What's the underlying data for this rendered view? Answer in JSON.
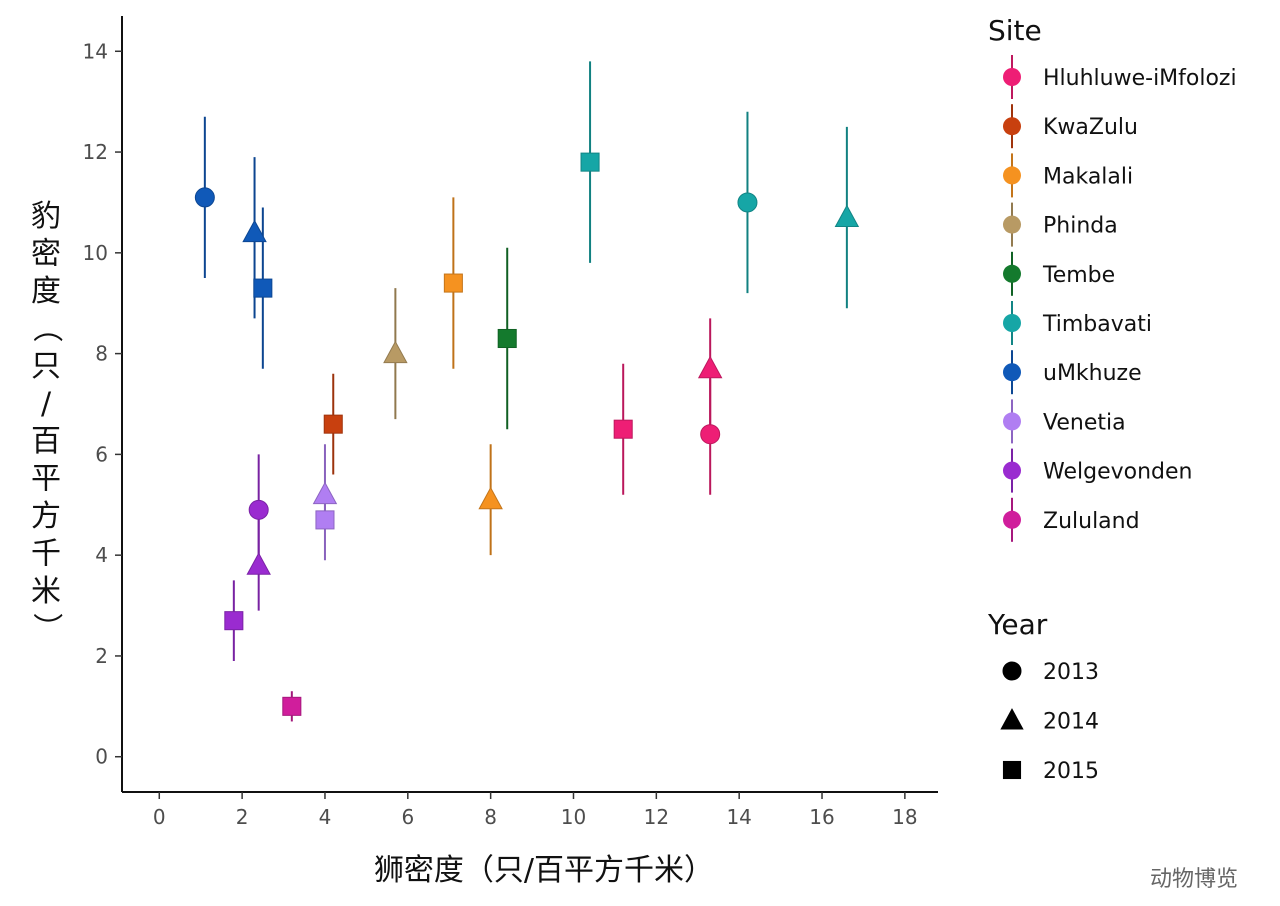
{
  "chart_data": {
    "type": "scatter",
    "xlabel": "狮密度（只/百平方千米）",
    "ylabel": "豹密度（只/百平方千米）",
    "xlim": [
      -0.9,
      18.8
    ],
    "ylim": [
      -0.7,
      14.7
    ],
    "x_ticks": [
      "0",
      "2",
      "4",
      "6",
      "8",
      "10",
      "12",
      "14",
      "16",
      "18"
    ],
    "y_ticks": [
      "0",
      "2",
      "4",
      "6",
      "8",
      "10",
      "12",
      "14"
    ],
    "grid": false,
    "legend_placement": "right",
    "site_legend_title": "Site",
    "year_legend_title": "Year",
    "sites": [
      {
        "name": "Hluhluwe-iMfolozi",
        "color": "#ee1e75"
      },
      {
        "name": "KwaZulu",
        "color": "#c8400f"
      },
      {
        "name": "Makalali",
        "color": "#f59220"
      },
      {
        "name": "Phinda",
        "color": "#b89a64"
      },
      {
        "name": "Tembe",
        "color": "#147a2d"
      },
      {
        "name": "Timbavati",
        "color": "#16a6a6"
      },
      {
        "name": "uMkhuze",
        "color": "#1059b8"
      },
      {
        "name": "Venetia",
        "color": "#b07ef2"
      },
      {
        "name": "Welgevonden",
        "color": "#9a2bd0"
      },
      {
        "name": "Zululand",
        "color": "#d01e9c"
      }
    ],
    "years": [
      {
        "name": "2013",
        "shape": "circle"
      },
      {
        "name": "2014",
        "shape": "triangle"
      },
      {
        "name": "2015",
        "shape": "square"
      }
    ],
    "points": [
      {
        "site": "uMkhuze",
        "year": "2013",
        "x": 1.1,
        "y": 11.1,
        "ylow": 9.5,
        "yhigh": 12.7
      },
      {
        "site": "uMkhuze",
        "year": "2014",
        "x": 2.3,
        "y": 10.4,
        "ylow": 8.7,
        "yhigh": 11.9
      },
      {
        "site": "uMkhuze",
        "year": "2015",
        "x": 2.5,
        "y": 9.3,
        "ylow": 7.7,
        "yhigh": 10.9
      },
      {
        "site": "Welgevonden",
        "year": "2013",
        "x": 2.4,
        "y": 4.9,
        "ylow": 3.8,
        "yhigh": 6.0
      },
      {
        "site": "Welgevonden",
        "year": "2014",
        "x": 2.4,
        "y": 3.8,
        "ylow": 2.9,
        "yhigh": 4.9
      },
      {
        "site": "Welgevonden",
        "year": "2015",
        "x": 1.8,
        "y": 2.7,
        "ylow": 1.9,
        "yhigh": 3.5
      },
      {
        "site": "Zululand",
        "year": "2015",
        "x": 3.2,
        "y": 1.0,
        "ylow": 0.7,
        "yhigh": 1.3
      },
      {
        "site": "Venetia",
        "year": "2014",
        "x": 4.0,
        "y": 5.2,
        "ylow": 4.6,
        "yhigh": 6.2
      },
      {
        "site": "Venetia",
        "year": "2015",
        "x": 4.0,
        "y": 4.7,
        "ylow": 3.9,
        "yhigh": 5.3
      },
      {
        "site": "KwaZulu",
        "year": "2015",
        "x": 4.2,
        "y": 6.6,
        "ylow": 5.6,
        "yhigh": 7.6
      },
      {
        "site": "Phinda",
        "year": "2014",
        "x": 5.7,
        "y": 8.0,
        "ylow": 6.7,
        "yhigh": 9.3
      },
      {
        "site": "Makalali",
        "year": "2015",
        "x": 7.1,
        "y": 9.4,
        "ylow": 7.7,
        "yhigh": 11.1
      },
      {
        "site": "Makalali",
        "year": "2014",
        "x": 8.0,
        "y": 5.1,
        "ylow": 4.0,
        "yhigh": 6.2
      },
      {
        "site": "Tembe",
        "year": "2015",
        "x": 8.4,
        "y": 8.3,
        "ylow": 6.5,
        "yhigh": 10.1
      },
      {
        "site": "Timbavati",
        "year": "2015",
        "x": 10.4,
        "y": 11.8,
        "ylow": 9.8,
        "yhigh": 13.8
      },
      {
        "site": "Timbavati",
        "year": "2013",
        "x": 14.2,
        "y": 11.0,
        "ylow": 9.2,
        "yhigh": 12.8
      },
      {
        "site": "Timbavati",
        "year": "2014",
        "x": 16.6,
        "y": 10.7,
        "ylow": 8.9,
        "yhigh": 12.5
      },
      {
        "site": "Hluhluwe-iMfolozi",
        "year": "2015",
        "x": 11.2,
        "y": 6.5,
        "ylow": 5.2,
        "yhigh": 7.8
      },
      {
        "site": "Hluhluwe-iMfolozi",
        "year": "2014",
        "x": 13.3,
        "y": 7.7,
        "ylow": 6.5,
        "yhigh": 8.7
      },
      {
        "site": "Hluhluwe-iMfolozi",
        "year": "2013",
        "x": 13.3,
        "y": 6.4,
        "ylow": 5.2,
        "yhigh": 7.5
      }
    ]
  },
  "watermark": "动物博览"
}
